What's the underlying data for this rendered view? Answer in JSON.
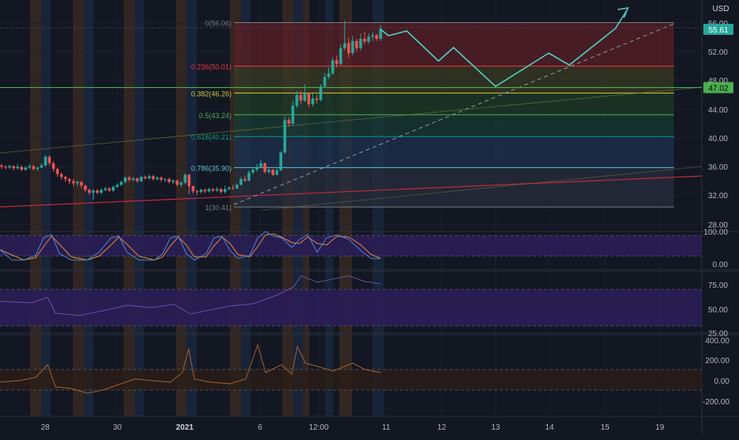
{
  "currency_label": "USD",
  "colors": {
    "background": "#131722",
    "up_candle": "#26a69a",
    "down_candle": "#ef5350",
    "green_line": "#4caf50",
    "cyan_projection": "#4dd0c6",
    "panel_purple": "#2a1e55",
    "stoch_k": "#4f83d6",
    "stoch_d": "#e2893a",
    "rsi_line": "#7e57c2",
    "third_line": "#c0692f"
  },
  "main_axis": {
    "ticks": [
      "56.00",
      "52.00",
      "48.00",
      "44.00",
      "40.00",
      "36.00",
      "32.00",
      "28.00"
    ],
    "price_tag": "55.61",
    "hline_tag": "47.02"
  },
  "fib_levels": [
    {
      "label": "0(56.06)",
      "value": 56.06,
      "color": "#787b86",
      "fill": "#5a1f26"
    },
    {
      "label": "0.236(50.01)",
      "value": 50.01,
      "color": "#f23645",
      "fill": "#3a3a22"
    },
    {
      "label": "0.382(46.26)",
      "value": 46.26,
      "color": "#c9cc39",
      "fill": "#1f3a25"
    },
    {
      "label": "0.5(43.24)",
      "value": 43.24,
      "color": "#4caf50",
      "fill": "#183a33"
    },
    {
      "label": "0.618(40.21)",
      "value": 40.21,
      "color": "#089981",
      "fill": "#1e324d"
    },
    {
      "label": "0.786(35.90)",
      "value": 35.9,
      "color": "#5bc4d6",
      "fill": "#272d3c"
    },
    {
      "label": "1(30.41)",
      "value": 30.41,
      "color": "#787b86",
      "fill": "#223344"
    }
  ],
  "panel1": {
    "ticks": [
      "100.00",
      "0.00"
    ]
  },
  "panel2": {
    "ticks": [
      "75.00",
      "50.00",
      "25.00"
    ]
  },
  "panel3": {
    "ticks": [
      "400.00",
      "200.00",
      "0.00",
      "-200.00"
    ]
  },
  "time_axis": {
    "labels": [
      {
        "text": "28",
        "bold": false
      },
      {
        "text": "30",
        "bold": false
      },
      {
        "text": "2021",
        "bold": true
      },
      {
        "text": "6",
        "bold": false
      },
      {
        "text": "12:00",
        "bold": false
      },
      {
        "text": "11",
        "bold": false
      },
      {
        "text": "12",
        "bold": false
      },
      {
        "text": "13",
        "bold": false
      },
      {
        "text": "14",
        "bold": false
      },
      {
        "text": "15",
        "bold": false
      },
      {
        "text": "19",
        "bold": false
      }
    ]
  }
}
